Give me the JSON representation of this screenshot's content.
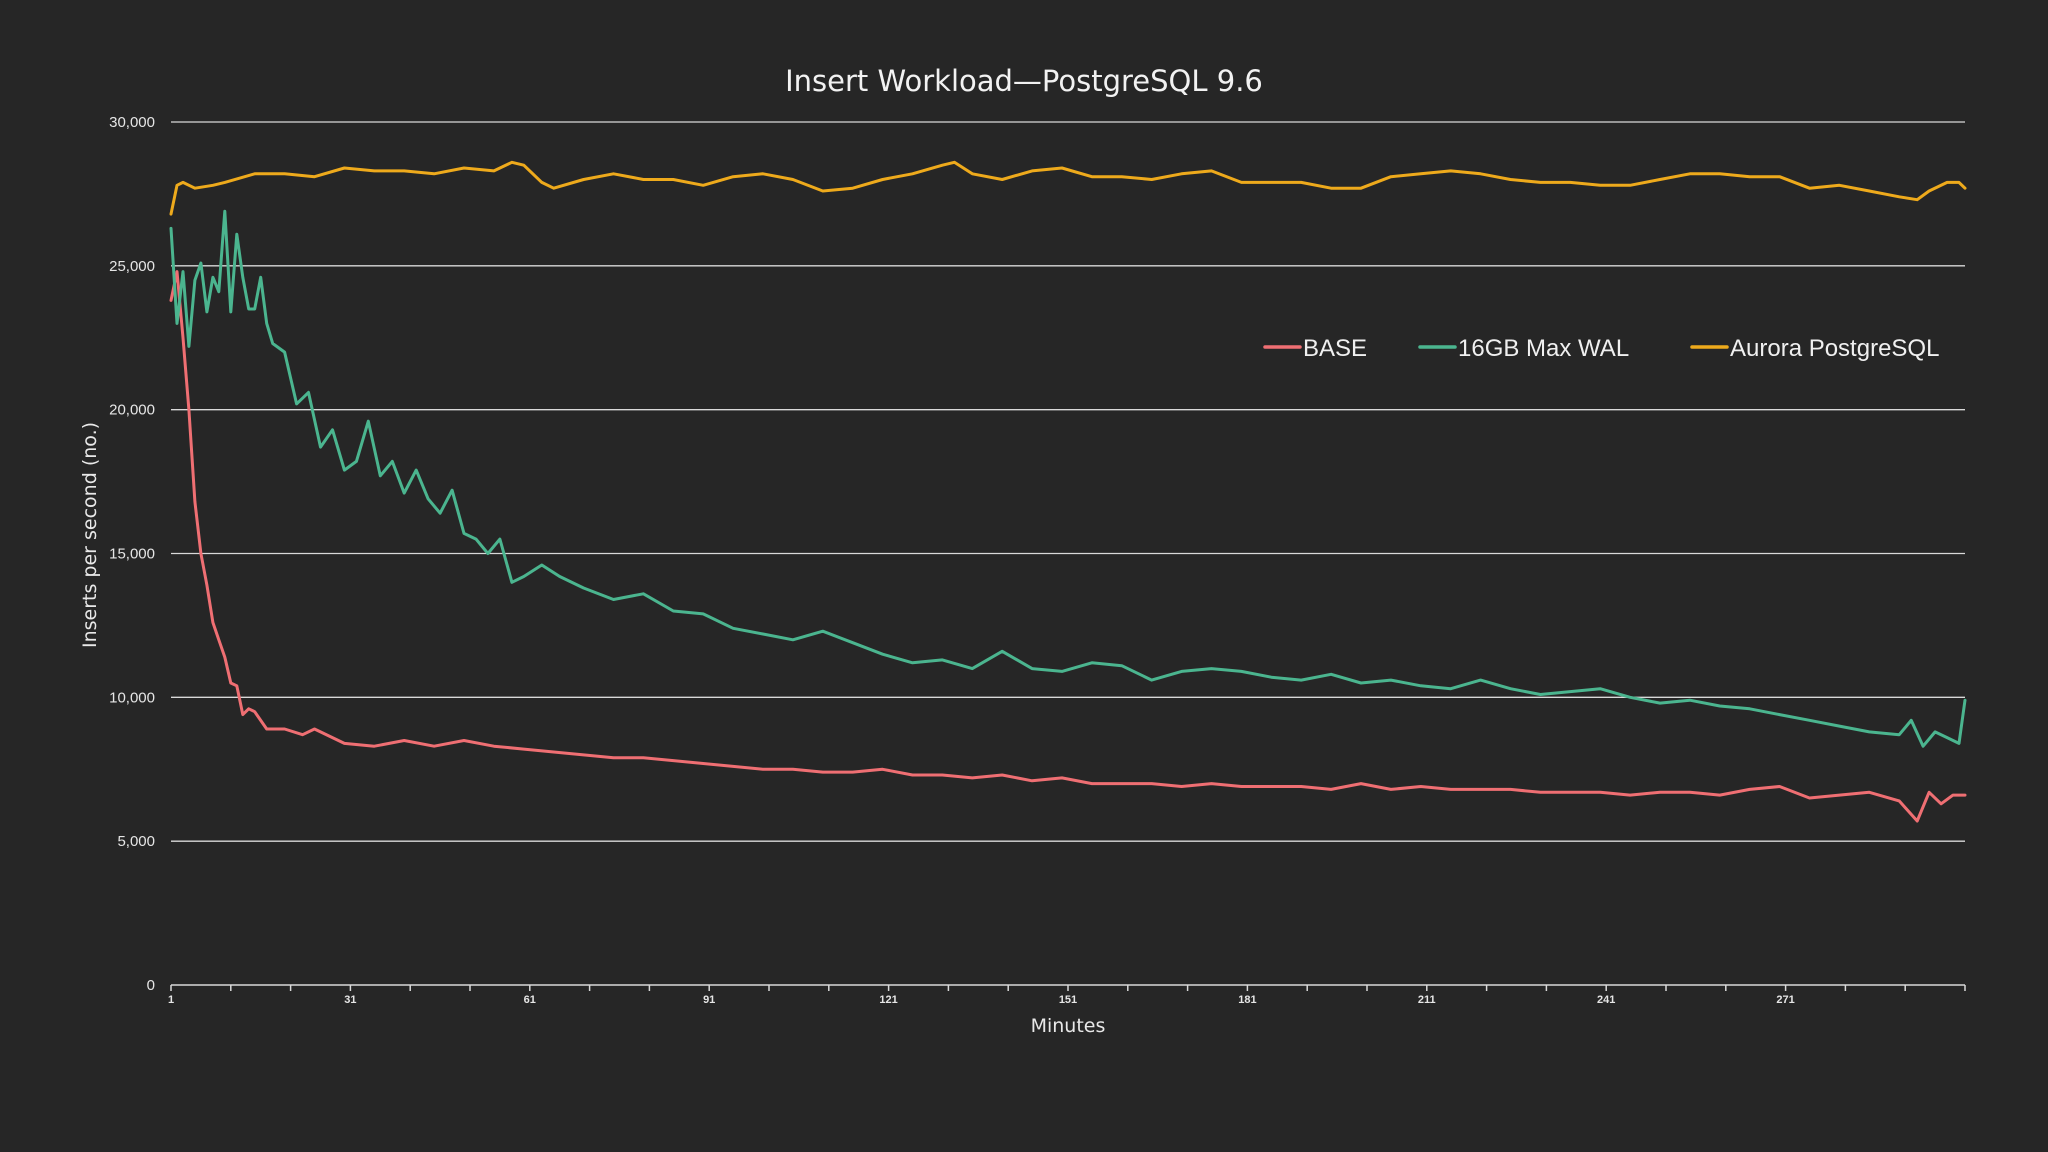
{
  "chart_data": {
    "type": "line",
    "title": "Insert Workload—PostgreSQL 9.6",
    "xlabel": "Minutes",
    "ylabel": "Inserts per second (no.)",
    "xlim": [
      1,
      301
    ],
    "ylim": [
      0,
      30000
    ],
    "yticks": [
      0,
      5000,
      10000,
      15000,
      20000,
      25000,
      30000
    ],
    "ytick_labels": [
      "0",
      "5,000",
      "10,000",
      "15,000",
      "20,000",
      "25,000",
      "30,000"
    ],
    "xticks": [
      1,
      31,
      61,
      91,
      121,
      151,
      181,
      211,
      241,
      271
    ],
    "xtick_labels": [
      "1",
      "31",
      "61",
      "91",
      "121",
      "151",
      "181",
      "211",
      "241",
      "271"
    ],
    "grid": "horizontal",
    "legend_position": "top-right",
    "series": [
      {
        "name": "BASE",
        "color": "#ef6f73",
        "x": [
          1,
          2,
          3,
          4,
          5,
          6,
          7,
          8,
          9,
          10,
          11,
          12,
          13,
          14,
          15,
          17,
          20,
          23,
          25,
          30,
          35,
          40,
          45,
          50,
          55,
          60,
          65,
          70,
          75,
          80,
          85,
          90,
          95,
          100,
          105,
          110,
          115,
          120,
          125,
          130,
          135,
          140,
          145,
          150,
          155,
          160,
          165,
          170,
          175,
          180,
          185,
          190,
          195,
          200,
          205,
          210,
          215,
          220,
          225,
          230,
          235,
          240,
          245,
          250,
          255,
          260,
          265,
          270,
          275,
          280,
          285,
          290,
          293,
          295,
          297,
          299,
          301
        ],
        "values": [
          23800,
          24800,
          22500,
          20000,
          16800,
          15000,
          13900,
          12600,
          12000,
          11400,
          10500,
          10400,
          9400,
          9600,
          9500,
          8900,
          8900,
          8700,
          8900,
          8400,
          8300,
          8500,
          8300,
          8500,
          8300,
          8200,
          8100,
          8000,
          7900,
          7900,
          7800,
          7700,
          7600,
          7500,
          7500,
          7400,
          7400,
          7500,
          7300,
          7300,
          7200,
          7300,
          7100,
          7200,
          7000,
          7000,
          7000,
          6900,
          7000,
          6900,
          6900,
          6900,
          6800,
          7000,
          6800,
          6900,
          6800,
          6800,
          6800,
          6700,
          6700,
          6700,
          6600,
          6700,
          6700,
          6600,
          6800,
          6900,
          6500,
          6600,
          6700,
          6400,
          5700,
          6700,
          6300,
          6600,
          6600
        ]
      },
      {
        "name": "16GB Max WAL",
        "color": "#4bb58f",
        "x": [
          1,
          2,
          3,
          4,
          5,
          6,
          7,
          8,
          9,
          10,
          11,
          12,
          13,
          14,
          15,
          16,
          17,
          18,
          20,
          22,
          24,
          26,
          28,
          30,
          32,
          34,
          36,
          38,
          40,
          42,
          44,
          46,
          48,
          50,
          52,
          54,
          56,
          58,
          60,
          63,
          66,
          70,
          75,
          80,
          85,
          90,
          95,
          100,
          105,
          110,
          115,
          120,
          125,
          130,
          135,
          140,
          145,
          150,
          155,
          160,
          165,
          170,
          175,
          180,
          185,
          190,
          195,
          200,
          205,
          210,
          215,
          220,
          225,
          230,
          235,
          240,
          245,
          250,
          255,
          260,
          265,
          270,
          275,
          280,
          285,
          290,
          292,
          294,
          296,
          298,
          300,
          301
        ],
        "values": [
          26300,
          23000,
          24800,
          22200,
          24500,
          25100,
          23400,
          24600,
          24100,
          26900,
          23400,
          26100,
          24600,
          23500,
          23500,
          24600,
          23000,
          22300,
          22000,
          20200,
          20600,
          18700,
          19300,
          17900,
          18200,
          19600,
          17700,
          18200,
          17100,
          17900,
          16900,
          16400,
          17200,
          15700,
          15500,
          15000,
          15500,
          14000,
          14200,
          14600,
          14200,
          13800,
          13400,
          13600,
          13000,
          12900,
          12400,
          12200,
          12000,
          12300,
          11900,
          11500,
          11200,
          11300,
          11000,
          11600,
          11000,
          10900,
          11200,
          11100,
          10600,
          10900,
          11000,
          10900,
          10700,
          10600,
          10800,
          10500,
          10600,
          10400,
          10300,
          10600,
          10300,
          10100,
          10200,
          10300,
          10000,
          9800,
          9900,
          9700,
          9600,
          9400,
          9200,
          9000,
          8800,
          8700,
          9200,
          8300,
          8800,
          8600,
          8400,
          9900
        ]
      },
      {
        "name": "Aurora PostgreSQL",
        "color": "#eeaa1c",
        "x": [
          1,
          2,
          3,
          5,
          8,
          10,
          15,
          20,
          25,
          30,
          35,
          40,
          45,
          50,
          55,
          58,
          60,
          63,
          65,
          70,
          75,
          80,
          85,
          90,
          95,
          100,
          105,
          110,
          115,
          120,
          125,
          130,
          132,
          135,
          140,
          145,
          150,
          155,
          160,
          165,
          170,
          175,
          180,
          185,
          190,
          195,
          200,
          205,
          210,
          215,
          220,
          225,
          230,
          235,
          240,
          245,
          250,
          255,
          260,
          265,
          270,
          275,
          280,
          285,
          290,
          293,
          295,
          298,
          300,
          301
        ],
        "values": [
          26800,
          27800,
          27900,
          27700,
          27800,
          27900,
          28200,
          28200,
          28100,
          28400,
          28300,
          28300,
          28200,
          28400,
          28300,
          28600,
          28500,
          27900,
          27700,
          28000,
          28200,
          28000,
          28000,
          27800,
          28100,
          28200,
          28000,
          27600,
          27700,
          28000,
          28200,
          28500,
          28600,
          28200,
          28000,
          28300,
          28400,
          28100,
          28100,
          28000,
          28200,
          28300,
          27900,
          27900,
          27900,
          27700,
          27700,
          28100,
          28200,
          28300,
          28200,
          28000,
          27900,
          27900,
          27800,
          27800,
          28000,
          28200,
          28200,
          28100,
          28100,
          27700,
          27800,
          27600,
          27400,
          27300,
          27600,
          27900,
          27900,
          27700
        ]
      }
    ]
  }
}
